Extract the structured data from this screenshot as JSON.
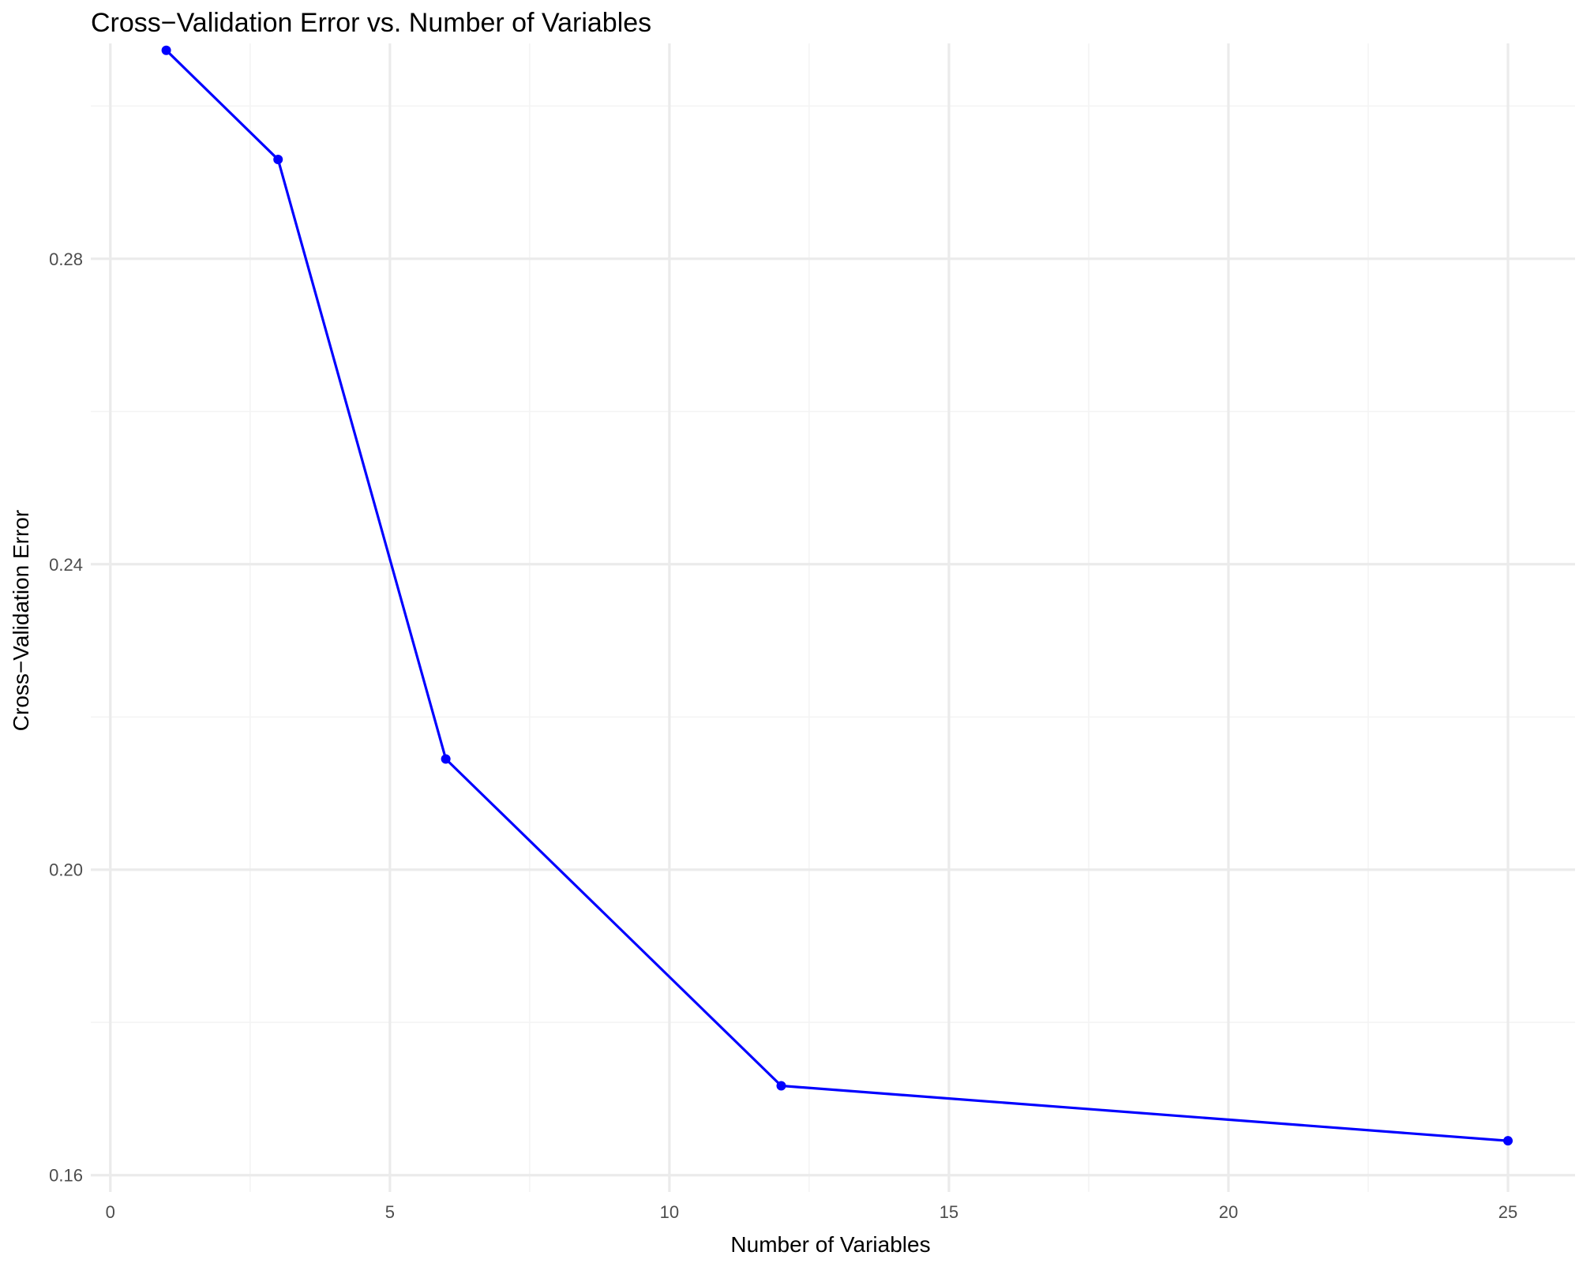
{
  "chart_data": {
    "type": "line",
    "title": "Cross−Validation Error vs. Number of Variables",
    "xlabel": "Number of Variables",
    "ylabel": "Cross−Validation Error",
    "xlim": [
      -0.35,
      26.2
    ],
    "ylim": [
      0.1578,
      0.3082
    ],
    "x_ticks": [
      0,
      5,
      10,
      15,
      20,
      25
    ],
    "x_tick_labels": [
      "0",
      "5",
      "10",
      "15",
      "20",
      "25"
    ],
    "y_ticks": [
      0.16,
      0.2,
      0.24,
      0.28
    ],
    "y_tick_labels": [
      "0.16",
      "0.20",
      "0.24",
      "0.28"
    ],
    "grid": true,
    "legend": "none",
    "colors": {
      "line": "#0000ff",
      "point": "#0000ff",
      "grid_major": "#ebebeb",
      "grid_minor": "#f4f4f4"
    },
    "series": [
      {
        "x": [
          1,
          3,
          6,
          12,
          25
        ],
        "y": [
          0.3073,
          0.293,
          0.2145,
          0.1717,
          0.1645
        ]
      }
    ]
  }
}
